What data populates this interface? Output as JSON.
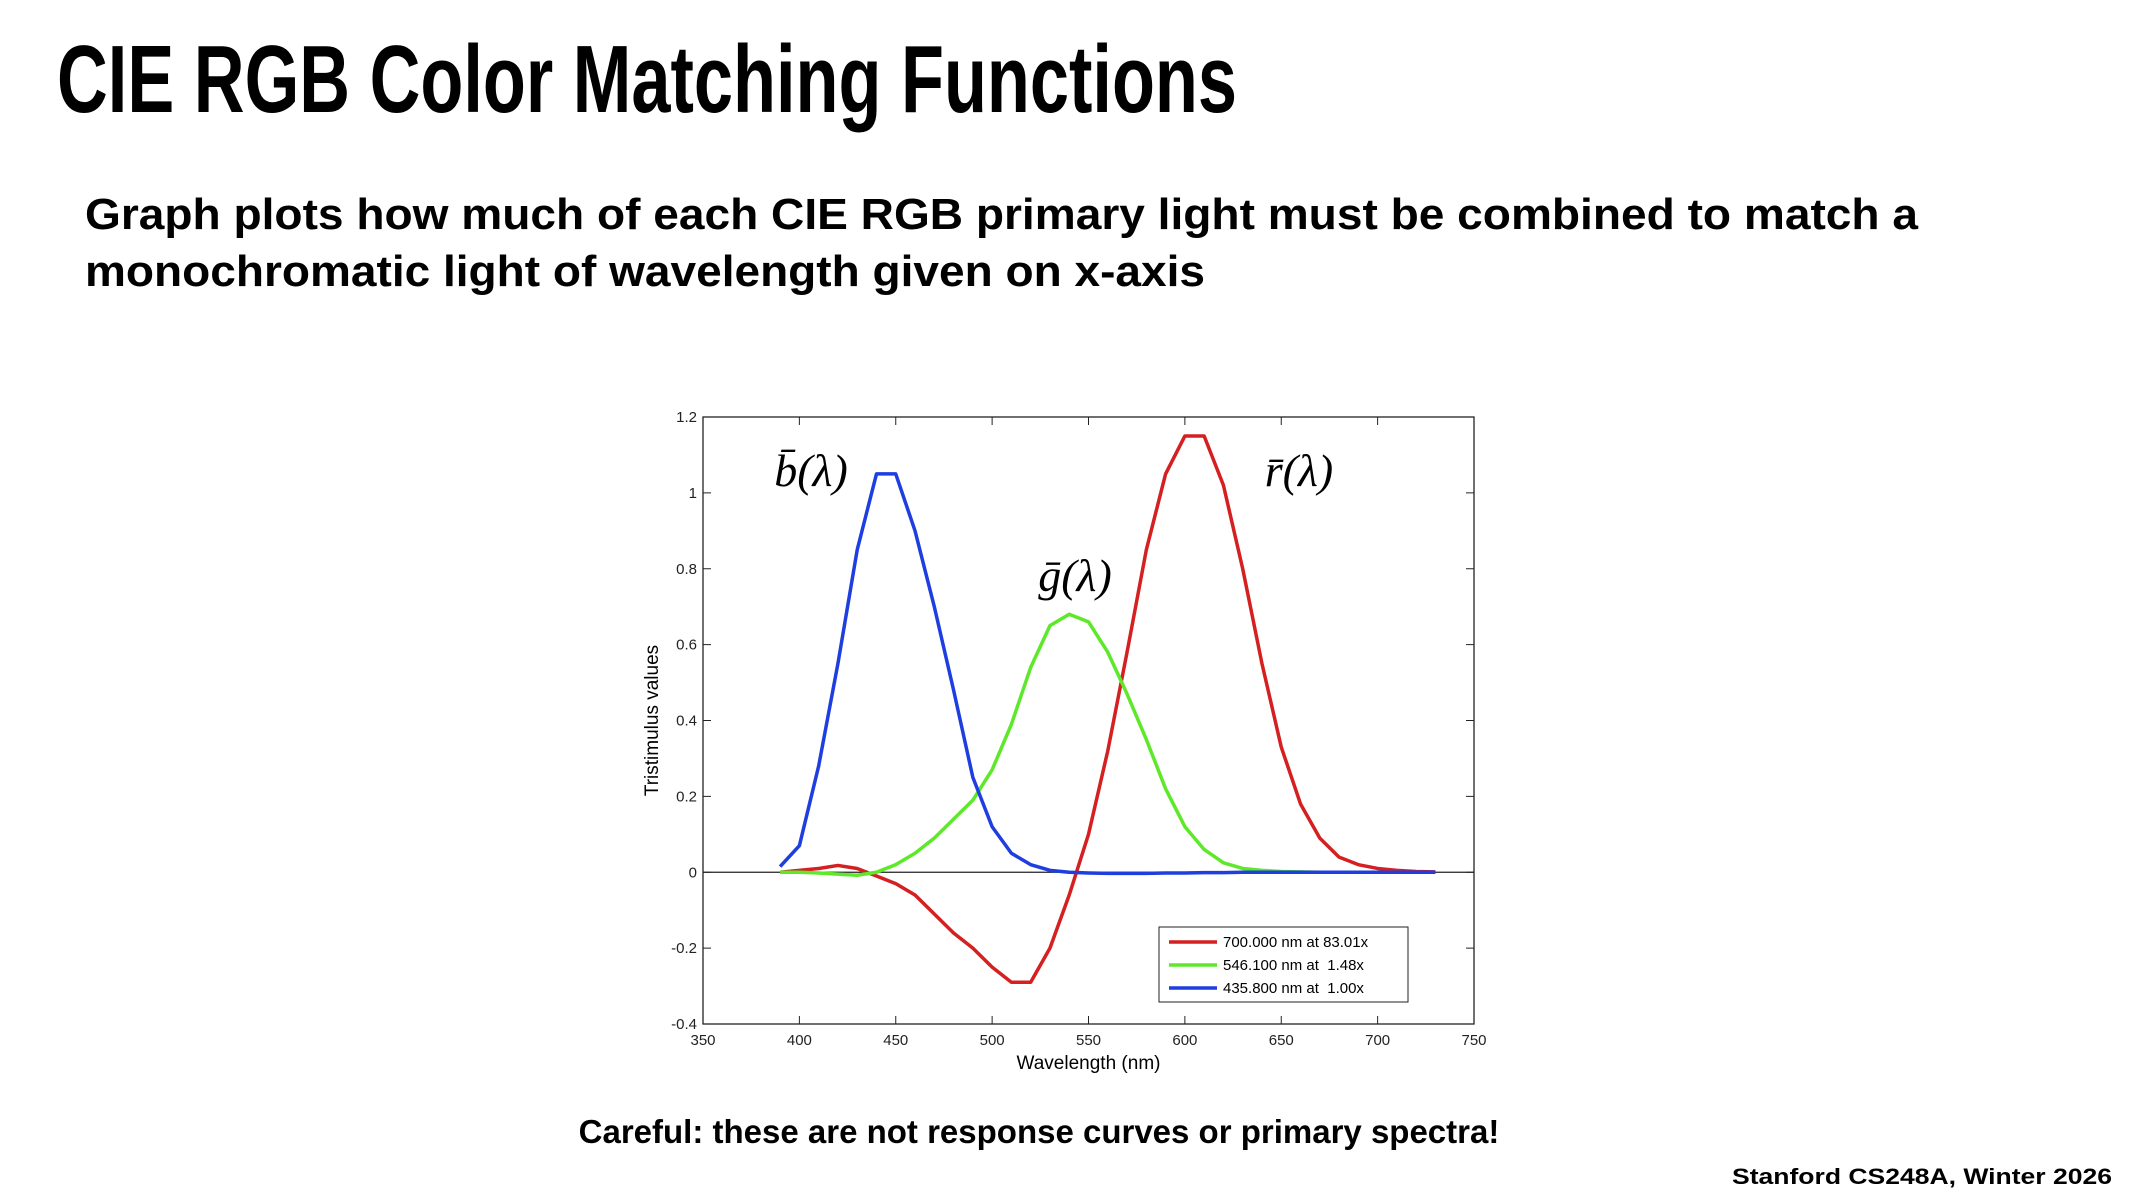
{
  "title": "CIE RGB Color Matching Functions",
  "subtitle": [
    "Graph plots how much of each CIE RGB primary light must be combined to match a",
    "monochromatic light of wavelength given on x-axis"
  ],
  "caption": "Careful: these are not response curves or primary spectra!",
  "footer": "Stanford CS248A, Winter 2026",
  "chart_data": {
    "type": "line",
    "xlabel": "Wavelength (nm)",
    "ylabel": "Tristimulus values",
    "annotations": [
      "b̄(λ)",
      "ḡ(λ)",
      "r̄(λ)"
    ],
    "x": [
      390,
      400,
      410,
      420,
      430,
      440,
      450,
      460,
      470,
      480,
      490,
      500,
      510,
      520,
      530,
      540,
      550,
      560,
      570,
      580,
      590,
      600,
      610,
      620,
      630,
      640,
      650,
      660,
      670,
      680,
      690,
      700,
      710,
      720,
      730
    ],
    "series": [
      {
        "name": "700.000 nm at 83.01x",
        "color": "#d42020",
        "values": [
          0.0,
          0.005,
          0.01,
          0.018,
          0.01,
          -0.01,
          -0.03,
          -0.06,
          -0.11,
          -0.16,
          -0.2,
          -0.25,
          -0.29,
          -0.29,
          -0.2,
          -0.06,
          0.1,
          0.32,
          0.58,
          0.85,
          1.05,
          1.15,
          1.15,
          1.02,
          0.8,
          0.55,
          0.33,
          0.18,
          0.09,
          0.04,
          0.02,
          0.01,
          0.005,
          0.002,
          0.001
        ]
      },
      {
        "name": "546.100 nm at  1.48x",
        "color": "#5ee82a",
        "values": [
          0,
          0,
          -0.002,
          -0.005,
          -0.008,
          0.0,
          0.02,
          0.05,
          0.09,
          0.14,
          0.19,
          0.27,
          0.39,
          0.54,
          0.65,
          0.68,
          0.66,
          0.58,
          0.47,
          0.35,
          0.22,
          0.12,
          0.06,
          0.025,
          0.01,
          0.005,
          0.002,
          0.001,
          0,
          0,
          0,
          0,
          0,
          0,
          0
        ]
      },
      {
        "name": "435.800 nm at  1.00x",
        "color": "#1e3ee0",
        "values": [
          0.015,
          0.07,
          0.28,
          0.55,
          0.85,
          1.05,
          1.05,
          0.9,
          0.7,
          0.48,
          0.25,
          0.12,
          0.05,
          0.02,
          0.005,
          0,
          -0.002,
          -0.003,
          -0.003,
          -0.003,
          -0.002,
          -0.002,
          -0.001,
          -0.001,
          0,
          0,
          0,
          0,
          0,
          0,
          0,
          0,
          0,
          0,
          0
        ]
      }
    ],
    "xlim": [
      350,
      750
    ],
    "xticks": [
      350,
      400,
      450,
      500,
      550,
      600,
      650,
      700,
      750
    ],
    "ylim": [
      -0.4,
      1.2
    ],
    "yticks": [
      -0.4,
      -0.2,
      0,
      0.2,
      0.4,
      0.6,
      0.8,
      1,
      1.2
    ],
    "grid": false,
    "legend": "lower right"
  }
}
